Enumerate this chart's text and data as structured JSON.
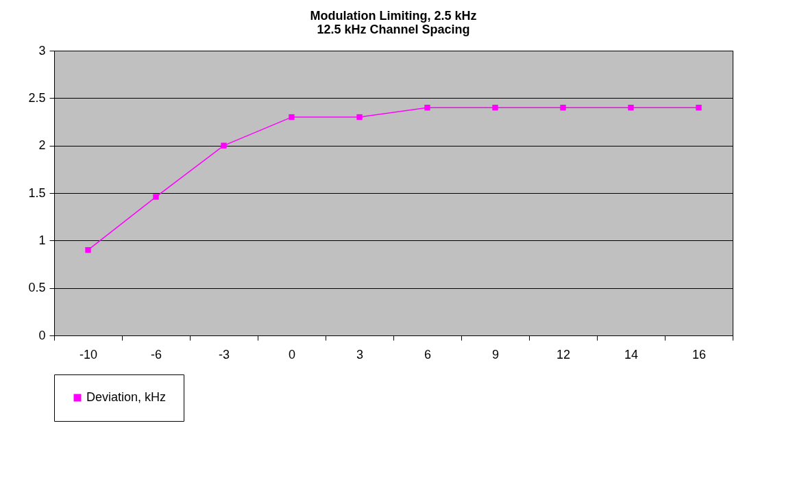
{
  "chart_data": {
    "type": "line",
    "title": [
      "Modulation Limiting, 2.5 kHz",
      "12.5 kHz Channel Spacing"
    ],
    "categories": [
      "-10",
      "-6",
      "-3",
      "0",
      "3",
      "6",
      "9",
      "12",
      "14",
      "16"
    ],
    "series": [
      {
        "name": "Deviation, kHz",
        "color": "#ff00ff",
        "values": [
          0.9,
          1.46,
          2.0,
          2.3,
          2.3,
          2.4,
          2.4,
          2.4,
          2.4,
          2.4
        ]
      }
    ],
    "ylim": [
      0,
      3
    ],
    "yticks": [
      0,
      0.5,
      1,
      1.5,
      2,
      2.5,
      3
    ],
    "grid": "y",
    "legend": "bottom",
    "marker": "square",
    "line_style": "solid"
  }
}
